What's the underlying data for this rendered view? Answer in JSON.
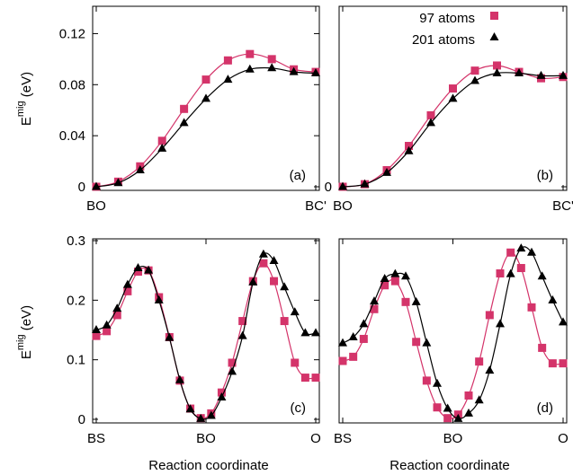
{
  "colors": {
    "series97": "#d4346a",
    "series201": "#000000"
  },
  "legend": [
    {
      "name": "97 atoms",
      "marker": "square"
    },
    {
      "name": "201 atoms",
      "marker": "triangle"
    }
  ],
  "ylabel": {
    "base": "E",
    "sup": "mig",
    "unit": " (eV)"
  },
  "xlabel": "Reaction coordinate",
  "chart_data": [
    {
      "type": "line",
      "panel_label": "(a)",
      "x_tick_labels": [
        "BO",
        "BC'"
      ],
      "ylim": [
        0,
        0.14
      ],
      "yticks": [
        "0",
        "0.04",
        "0.08",
        "0.12"
      ],
      "x": [
        0,
        1,
        2,
        3,
        4,
        5,
        6,
        7,
        8,
        9,
        10,
        11,
        12
      ],
      "series": [
        {
          "name": "97 atoms",
          "marker": "square",
          "values": [
            0.0,
            0.004,
            0.016,
            0.036,
            0.061,
            0.084,
            0.099,
            0.104,
            0.1,
            0.092,
            0.09
          ],
          "x": [
            0,
            1.1,
            2.2,
            3.3,
            4.4,
            5.5,
            6.6,
            7.7,
            8.8,
            9.9,
            11.0
          ]
        },
        {
          "name": "201 atoms",
          "marker": "triangle",
          "values": [
            0.0,
            0.003,
            0.013,
            0.03,
            0.05,
            0.069,
            0.084,
            0.092,
            0.093,
            0.09,
            0.089
          ],
          "x": [
            0,
            1.1,
            2.2,
            3.3,
            4.4,
            5.5,
            6.6,
            7.7,
            8.8,
            9.9,
            11.0
          ]
        }
      ]
    },
    {
      "type": "line",
      "panel_label": "(b)",
      "x_tick_labels": [
        "BO",
        "BC'"
      ],
      "ylim": [
        0,
        0.14
      ],
      "yticks": [
        "0"
      ],
      "series": [
        {
          "name": "97 atoms",
          "marker": "square",
          "x": [
            0,
            1.1,
            2.2,
            3.3,
            4.4,
            5.5,
            6.6,
            7.7,
            8.8,
            9.9,
            11.0
          ],
          "values": [
            0.0,
            0.002,
            0.013,
            0.032,
            0.056,
            0.077,
            0.091,
            0.095,
            0.09,
            0.085,
            0.086
          ]
        },
        {
          "name": "201 atoms",
          "marker": "triangle",
          "x": [
            0,
            1.1,
            2.2,
            3.3,
            4.4,
            5.5,
            6.6,
            7.7,
            8.8,
            9.9,
            11.0
          ],
          "values": [
            0.0,
            0.002,
            0.011,
            0.028,
            0.05,
            0.069,
            0.083,
            0.089,
            0.089,
            0.087,
            0.087
          ]
        }
      ]
    },
    {
      "type": "line",
      "panel_label": "(c)",
      "x_tick_labels": [
        "BS",
        "BO",
        "O"
      ],
      "ylim": [
        0,
        0.3
      ],
      "yticks": [
        "0",
        "0.1",
        "0.2",
        "0.3"
      ],
      "series": [
        {
          "name": "97 atoms",
          "marker": "square",
          "x": [
            0,
            1,
            2,
            3,
            4,
            5,
            6,
            7,
            8,
            9,
            10,
            11,
            12,
            13,
            14,
            15,
            16,
            17,
            18,
            19,
            20,
            21
          ],
          "values": [
            0.14,
            0.148,
            0.175,
            0.215,
            0.248,
            0.25,
            0.205,
            0.138,
            0.065,
            0.018,
            0.002,
            0.01,
            0.045,
            0.095,
            0.165,
            0.232,
            0.262,
            0.232,
            0.165,
            0.095,
            0.07,
            0.07
          ]
        },
        {
          "name": "201 atoms",
          "marker": "triangle",
          "x": [
            0,
            1,
            2,
            3,
            4,
            5,
            6,
            7,
            8,
            9,
            10,
            11,
            12,
            13,
            14,
            15,
            16,
            17,
            18,
            19,
            20,
            21
          ],
          "values": [
            0.15,
            0.158,
            0.186,
            0.226,
            0.254,
            0.25,
            0.2,
            0.137,
            0.066,
            0.017,
            0.001,
            0.006,
            0.037,
            0.08,
            0.14,
            0.23,
            0.277,
            0.266,
            0.222,
            0.18,
            0.145,
            0.145
          ]
        }
      ]
    },
    {
      "type": "line",
      "panel_label": "(d)",
      "x_tick_labels": [
        "BS",
        "BO",
        "O"
      ],
      "ylim": [
        0,
        0.3
      ],
      "yticks": [],
      "series": [
        {
          "name": "97 atoms",
          "marker": "square",
          "x": [
            0,
            1,
            2,
            3,
            4,
            5,
            6,
            7,
            8,
            9,
            10,
            11,
            12,
            13,
            14,
            15,
            16,
            17,
            18,
            19,
            20,
            21
          ],
          "values": [
            0.098,
            0.105,
            0.135,
            0.185,
            0.225,
            0.232,
            0.197,
            0.13,
            0.065,
            0.02,
            0.002,
            0.008,
            0.04,
            0.097,
            0.175,
            0.245,
            0.28,
            0.254,
            0.188,
            0.12,
            0.094,
            0.094
          ]
        },
        {
          "name": "201 atoms",
          "marker": "triangle",
          "x": [
            0,
            1,
            2,
            3,
            4,
            5,
            6,
            7,
            8,
            9,
            10,
            11,
            12,
            13,
            14,
            15,
            16,
            17,
            18,
            19,
            20,
            21
          ],
          "values": [
            0.128,
            0.138,
            0.16,
            0.198,
            0.236,
            0.244,
            0.24,
            0.197,
            0.128,
            0.06,
            0.018,
            0.001,
            0.01,
            0.032,
            0.082,
            0.16,
            0.244,
            0.287,
            0.28,
            0.24,
            0.2,
            0.163
          ]
        }
      ]
    }
  ]
}
